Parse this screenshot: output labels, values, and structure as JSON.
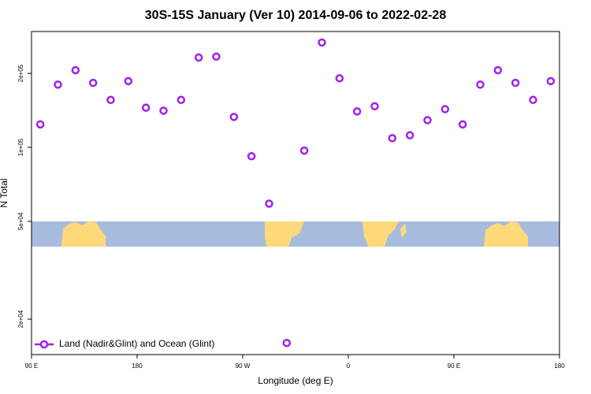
{
  "chart_data": {
    "type": "scatter",
    "title": "30S-15S January (Ver 10)   2014-09-06 to 2022-02-28",
    "x_label": "Longitude (deg E)",
    "y_label": "N Total",
    "log_y": true,
    "legend_position": "bottom-left",
    "xlim": [
      90,
      540
    ],
    "ylim": [
      14350,
      296000
    ],
    "xticks": [
      {
        "value": 90,
        "label": "90 E"
      },
      180,
      {
        "value": 270,
        "label": "90 W"
      },
      {
        "value": 360,
        "label": "0"
      },
      {
        "value": 450,
        "label": "90 E"
      },
      {
        "value": 540,
        "label": "180"
      }
    ],
    "yticks": [
      {
        "value": 20000,
        "label": "2e+04"
      },
      {
        "value": 50000,
        "label": "5e+04"
      },
      {
        "value": 100000,
        "label": "1e+05"
      },
      {
        "value": 200000,
        "label": "2e+05"
      }
    ],
    "series": [
      {
        "name": "Land (Nadir&Glint) and Ocean (Glint)",
        "color": "#a020f0",
        "x": [
          97.5,
          112.5,
          127.5,
          142.5,
          157.5,
          172.5,
          187.5,
          202.5,
          217.5,
          232.5,
          247.5,
          262.5,
          277.5,
          292.5,
          307.5,
          322.5,
          337.5,
          352.5,
          367.5,
          382.5,
          397.5,
          412.5,
          427.5,
          442.5,
          457.5,
          472.5,
          487.5,
          502.5,
          517.5,
          532.5
        ],
        "values": [
          124000,
          180000,
          206000,
          183000,
          156000,
          186000,
          145000,
          141000,
          156000,
          232000,
          234000,
          133000,
          92000,
          59000,
          16000,
          97000,
          267000,
          191000,
          140000,
          147000,
          109000,
          112000,
          129000,
          143000,
          124000,
          180000,
          206000,
          183000,
          156000,
          186000
        ]
      }
    ]
  }
}
